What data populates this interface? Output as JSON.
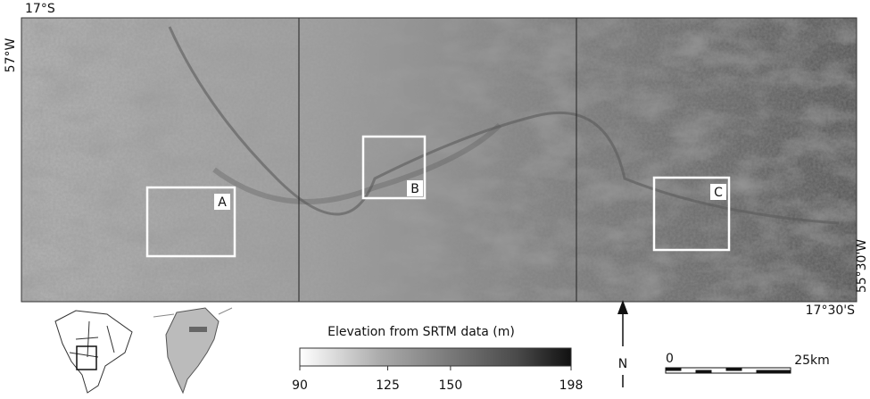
{
  "map": {
    "corners": {
      "top_left_lat": "17°S",
      "top_left_lon": "57°W",
      "bottom_right_lon": "55°30'W",
      "bottom_right_lat": "17°30'S"
    },
    "boxes": [
      {
        "label": "A"
      },
      {
        "label": "B"
      },
      {
        "label": "C"
      }
    ],
    "legend": {
      "title": "Elevation from   SRTM data (m)",
      "range": [
        90,
        198
      ],
      "ticks": [
        90,
        125,
        150,
        198
      ]
    },
    "north_arrow": {
      "label": "N"
    },
    "scale_bar": {
      "start": "0",
      "end": "25km"
    }
  }
}
